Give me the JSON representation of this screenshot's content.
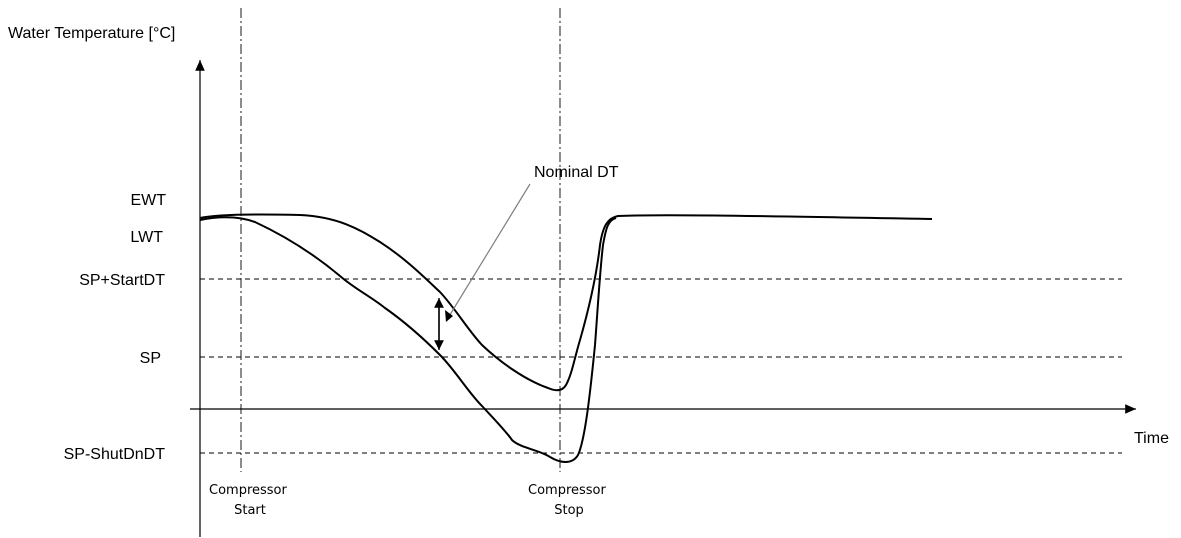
{
  "axes": {
    "y_label": "Water Temperature [°C]",
    "x_label": "Time"
  },
  "levels": {
    "ewt": "EWT",
    "lwt": "LWT",
    "sp_start": "SP+StartDT",
    "sp": "SP",
    "sp_shutdown": "SP-ShutDnDT"
  },
  "events": {
    "compressor_start": [
      "Compressor",
      "Start"
    ],
    "compressor_stop": [
      "Compressor",
      "Stop"
    ]
  },
  "annotations": {
    "nominal_dt": "Nominal DT"
  },
  "colors": {
    "line": "#000000",
    "annotation": "#7f7f7f"
  }
}
